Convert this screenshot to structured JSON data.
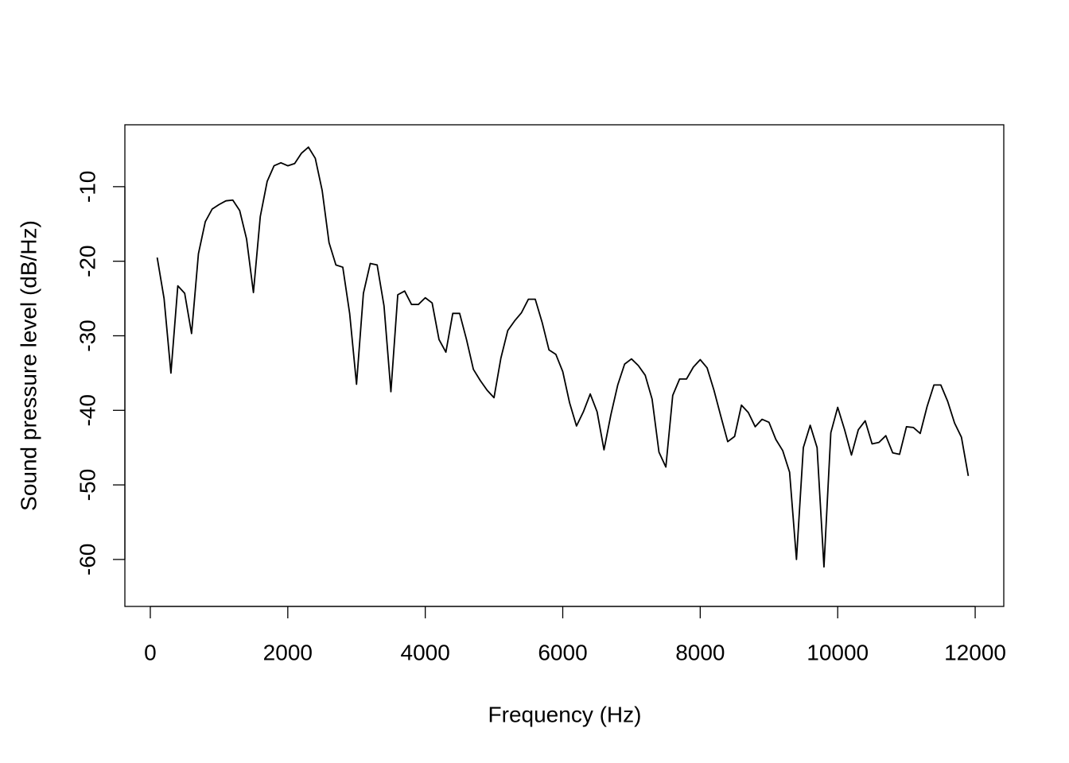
{
  "chart_data": {
    "type": "line",
    "xlabel": "Frequency (Hz)",
    "ylabel": "Sound pressure level (dB/Hz)",
    "color": "#000000",
    "x": [
      100,
      200,
      300,
      400,
      500,
      600,
      700,
      800,
      900,
      1000,
      1100,
      1200,
      1300,
      1400,
      1500,
      1600,
      1700,
      1800,
      1900,
      2000,
      2100,
      2200,
      2300,
      2400,
      2500,
      2600,
      2700,
      2800,
      2900,
      3000,
      3100,
      3200,
      3300,
      3400,
      3500,
      3600,
      3700,
      3800,
      3900,
      4000,
      4100,
      4200,
      4300,
      4400,
      4500,
      4600,
      4700,
      4800,
      4900,
      5000,
      5100,
      5200,
      5300,
      5400,
      5500,
      5600,
      5700,
      5800,
      5900,
      6000,
      6100,
      6200,
      6300,
      6400,
      6500,
      6600,
      6700,
      6800,
      6900,
      7000,
      7100,
      7200,
      7300,
      7400,
      7500,
      7600,
      7700,
      7800,
      7900,
      8000,
      8100,
      8200,
      8300,
      8400,
      8500,
      8600,
      8700,
      8800,
      8900,
      9000,
      9100,
      9200,
      9300,
      9400,
      9500,
      9600,
      9700,
      9800,
      9900,
      10000,
      10100,
      10200,
      10300,
      10400,
      10500,
      10600,
      10700,
      10800,
      10900,
      11000,
      11100,
      11200,
      11300,
      11400,
      11500,
      11600,
      11700,
      11800,
      11900
    ],
    "values": [
      -19.5,
      -25,
      -35,
      -23.3,
      -24.3,
      -29.7,
      -19,
      -14.7,
      -13,
      -12.4,
      -11.9,
      -11.8,
      -13.2,
      -17,
      -24.2,
      -14,
      -9.3,
      -7.2,
      -6.8,
      -7.2,
      -6.9,
      -5.5,
      -4.7,
      -6.2,
      -10.5,
      -17.5,
      -20.5,
      -20.8,
      -27,
      -36.5,
      -24.3,
      -20.3,
      -20.5,
      -26,
      -37.5,
      -24.5,
      -24,
      -25.8,
      -25.8,
      -24.9,
      -25.6,
      -30.5,
      -32.2,
      -27,
      -27,
      -30.5,
      -34.5,
      -36,
      -37.3,
      -38.3,
      -33,
      -29.3,
      -28,
      -26.9,
      -25.1,
      -25.1,
      -28.2,
      -31.9,
      -32.5,
      -34.8,
      -39,
      -42.1,
      -40.2,
      -37.8,
      -40.2,
      -45.3,
      -40.6,
      -36.6,
      -33.8,
      -33.1,
      -34,
      -35.3,
      -38.5,
      -45.6,
      -47.6,
      -38,
      -35.8,
      -35.8,
      -34.2,
      -33.2,
      -34.3,
      -37.3,
      -40.8,
      -44.2,
      -43.5,
      -39.3,
      -40.3,
      -42.2,
      -41.2,
      -41.6,
      -43.9,
      -45.4,
      -48.3,
      -60,
      -45,
      -42,
      -45,
      -61,
      -43,
      -39.6,
      -42.6,
      -46,
      -42.6,
      -41.4,
      -44.5,
      -44.3,
      -43.4,
      -45.7,
      -45.9,
      -42.2,
      -42.3,
      -43.1,
      -39.5,
      -36.6,
      -36.6,
      -38.8,
      -41.7,
      -43.6,
      -48.8
    ],
    "xlim": [
      -370,
      12416
    ],
    "ylim": [
      -66.3,
      -1.7
    ],
    "xticks": [
      0,
      2000,
      4000,
      6000,
      8000,
      10000,
      12000
    ],
    "yticks": [
      -60,
      -50,
      -40,
      -30,
      -20,
      -10
    ]
  }
}
